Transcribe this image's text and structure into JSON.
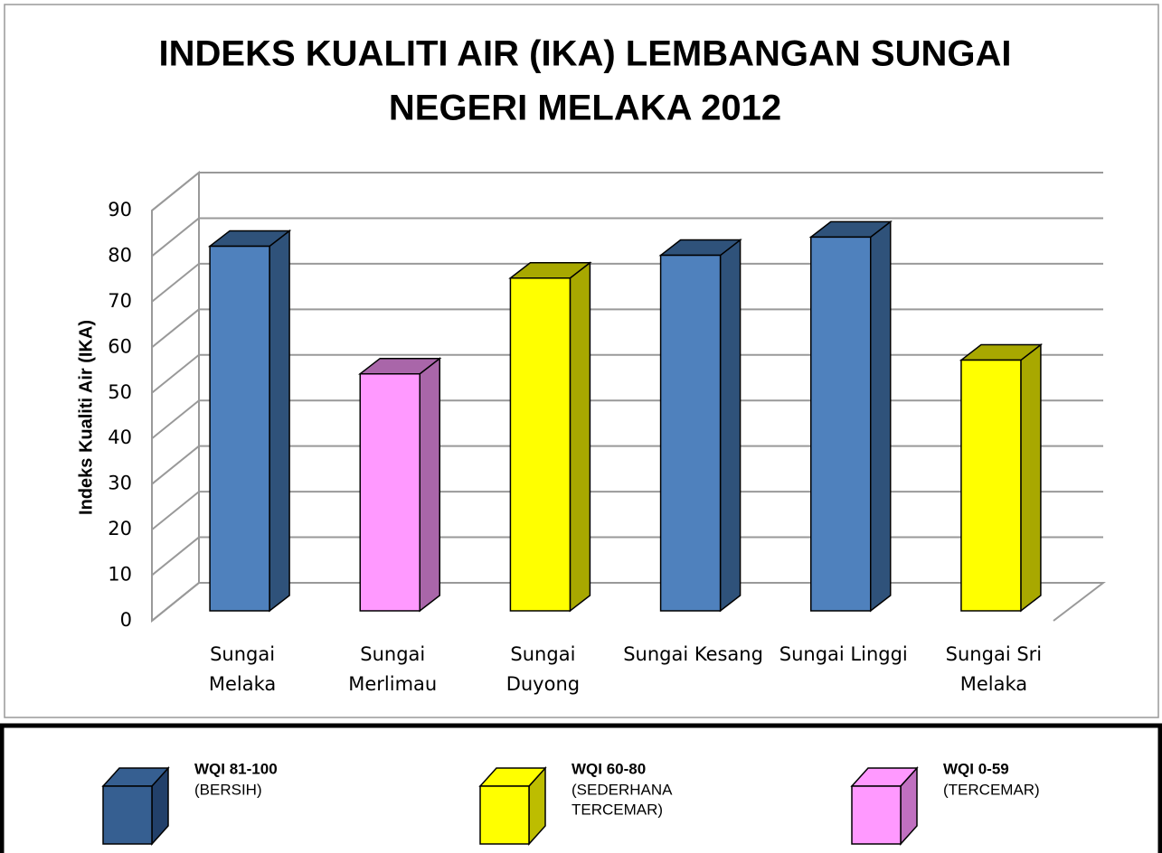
{
  "chart_data": {
    "type": "bar3d",
    "title": [
      "INDEKS KUALITI AIR (IKA) LEMBANGAN SUNGAI",
      "NEGERI MELAKA 2012"
    ],
    "y_label": "Indeks Kualiti Air (IKA)",
    "categories": [
      [
        "Sungai",
        "Melaka"
      ],
      [
        "Sungai",
        "Merlimau"
      ],
      [
        "Sungai",
        "Duyong"
      ],
      [
        "Sungai Kesang"
      ],
      [
        "Sungai Linggi"
      ],
      [
        "Sungai Sri",
        "Melaka"
      ]
    ],
    "values": [
      80,
      52,
      73,
      78,
      82,
      55
    ],
    "colors": [
      "#4f81bd",
      "#ff99ff",
      "#ffff00",
      "#4f81bd",
      "#4f81bd",
      "#ffff00"
    ],
    "side_colors": [
      "#2f527a",
      "#a966a9",
      "#a8a800",
      "#2f527a",
      "#2f527a",
      "#a8a800"
    ],
    "ylim": [
      0,
      90
    ],
    "yticks": [
      0,
      10,
      20,
      30,
      40,
      50,
      60,
      70,
      80,
      90
    ],
    "grid": true,
    "legend": [
      {
        "title": "WQI 81-100",
        "label": [
          "(BERSIH)"
        ],
        "color": "#365f91",
        "side": "#22406a"
      },
      {
        "title": "WQI 60-80",
        "label": [
          "(SEDERHANA",
          "TERCEMAR)"
        ],
        "color": "#ffff00",
        "side": "#bdbd00"
      },
      {
        "title": "WQI 0-59",
        "label": [
          "(TERCEMAR)"
        ],
        "color": "#ff99ff",
        "side": "#c070c0"
      }
    ]
  }
}
